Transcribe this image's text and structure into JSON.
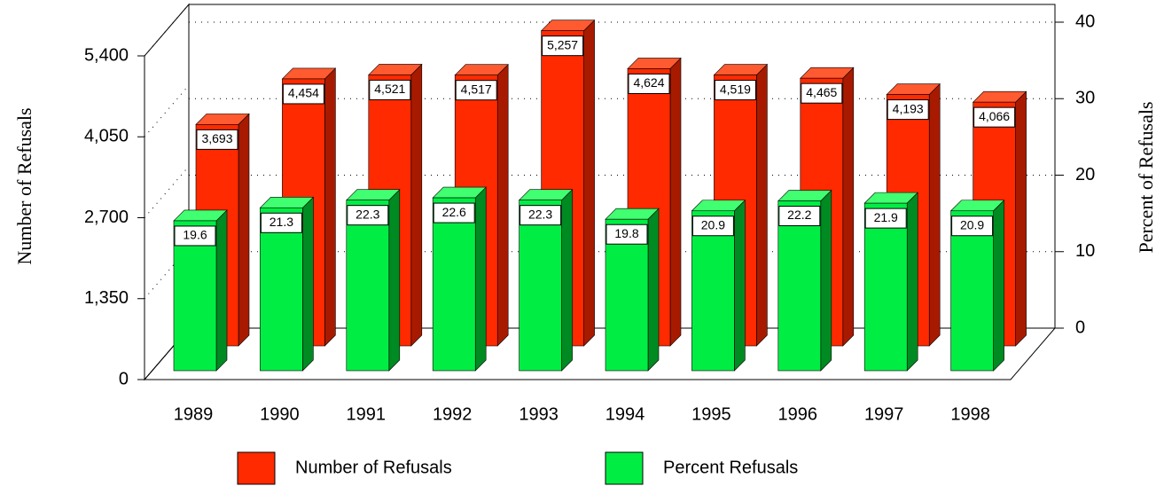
{
  "chart_data": {
    "type": "bar3d",
    "categories": [
      "1989",
      "1990",
      "1991",
      "1992",
      "1993",
      "1994",
      "1995",
      "1996",
      "1997",
      "1998"
    ],
    "series": [
      {
        "name": "Number of Refusals",
        "color": "#ff2a00",
        "values": [
          3693,
          4454,
          4521,
          4517,
          5257,
          4624,
          4519,
          4465,
          4193,
          4066
        ],
        "value_labels": [
          "3,693",
          "4,454",
          "4,521",
          "4,517",
          "5,257",
          "4,624",
          "4,519",
          "4,465",
          "4,193",
          "4,066"
        ]
      },
      {
        "name": "Percent Refusals",
        "color": "#00ee44",
        "axis": "y2",
        "values": [
          19.6,
          21.3,
          22.3,
          22.6,
          22.3,
          19.8,
          20.9,
          22.2,
          21.9,
          20.9
        ]
      }
    ],
    "ylabel": "Number of Refusals",
    "y2label": "Percent of Refusals",
    "ylim": [
      0,
      5400
    ],
    "yticks": [
      0,
      {
        "value": 1350,
        "label": "1,350"
      },
      {
        "value": 2700,
        "label": "2,700"
      },
      {
        "value": 4050,
        "label": "4,050"
      },
      {
        "value": 5400,
        "label": "5,400"
      }
    ],
    "y2lim": [
      0,
      40
    ],
    "y2ticks": [
      0,
      10,
      20,
      30,
      40
    ],
    "grid": true,
    "legend": "bottom"
  }
}
